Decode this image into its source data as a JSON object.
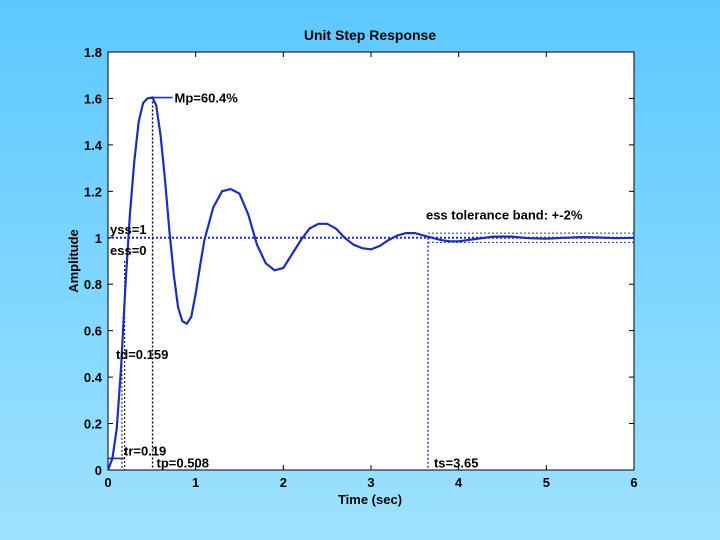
{
  "chart_data": {
    "type": "line",
    "title": "Unit Step Response",
    "xlabel": "Time (sec)",
    "ylabel": "Amplitude",
    "xlim": [
      0,
      6
    ],
    "ylim": [
      0,
      1.8
    ],
    "xticks": [
      "0",
      "1",
      "2",
      "3",
      "4",
      "5",
      "6"
    ],
    "yticks": [
      "0",
      "0.2",
      "0.4",
      "0.6",
      "0.8",
      "1",
      "1.2",
      "1.4",
      "1.6",
      "1.8"
    ],
    "grid": false,
    "series": [
      {
        "x": [
          0,
          0.05,
          0.1,
          0.15,
          0.2,
          0.25,
          0.3,
          0.35,
          0.4,
          0.45,
          0.508,
          0.55,
          0.6,
          0.65,
          0.7,
          0.75,
          0.8,
          0.85,
          0.9,
          0.95,
          1.0,
          1.05,
          1.1,
          1.2,
          1.3,
          1.4,
          1.5,
          1.6,
          1.7,
          1.8,
          1.9,
          2.0,
          2.1,
          2.2,
          2.3,
          2.4,
          2.5,
          2.6,
          2.7,
          2.8,
          2.9,
          3.0,
          3.1,
          3.2,
          3.3,
          3.4,
          3.5,
          3.6,
          3.7,
          3.8,
          3.9,
          4.0,
          4.2,
          4.4,
          4.6,
          4.8,
          5.0,
          5.2,
          5.4,
          5.6,
          5.8,
          6.0
        ],
        "y": [
          0,
          0.05,
          0.18,
          0.45,
          0.8,
          1.1,
          1.33,
          1.5,
          1.58,
          1.6,
          1.604,
          1.57,
          1.44,
          1.25,
          1.03,
          0.84,
          0.7,
          0.64,
          0.63,
          0.66,
          0.76,
          0.88,
          0.99,
          1.13,
          1.2,
          1.21,
          1.19,
          1.1,
          0.97,
          0.89,
          0.86,
          0.87,
          0.93,
          0.99,
          1.04,
          1.06,
          1.06,
          1.04,
          1.0,
          0.97,
          0.955,
          0.95,
          0.965,
          0.99,
          1.01,
          1.02,
          1.02,
          1.01,
          1.0,
          0.99,
          0.985,
          0.985,
          0.995,
          1.005,
          1.005,
          0.998,
          0.996,
          1.0,
          1.003,
          1.001,
          0.998,
          1.0
        ]
      }
    ],
    "steady_state": 1,
    "tolerance_band": [
      0.98,
      1.02
    ],
    "markers": {
      "tr": 0.19,
      "td": 0.159,
      "tp": 0.508,
      "mp": 1.604,
      "ts": 3.65
    },
    "annotations": {
      "mp": "Mp=60.4%",
      "yss": "yss=1",
      "ess": "ess=0",
      "td": "td=0.159",
      "tr": "tr=0.19",
      "tp": "tp=0.508",
      "ts": "ts=3.65",
      "band": "ess tolerance band: +-2%"
    }
  }
}
